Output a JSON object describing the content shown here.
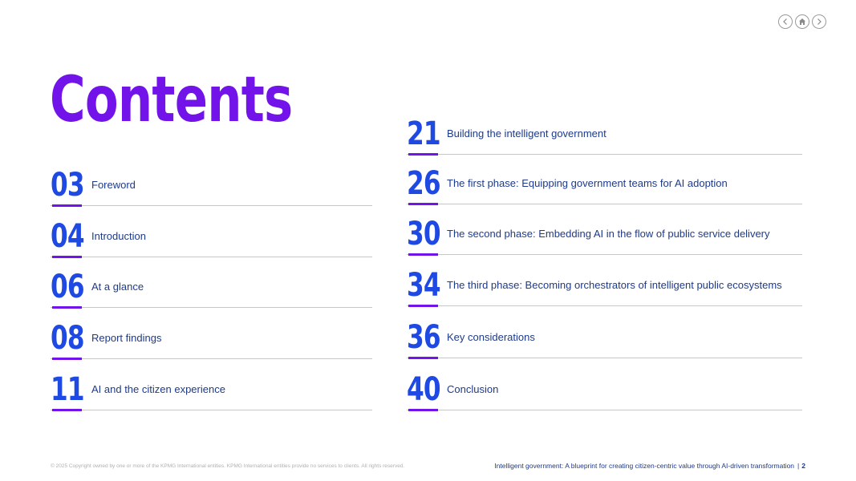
{
  "nav": {
    "icons": [
      "chevron-left-icon",
      "home-icon",
      "chevron-right-icon"
    ]
  },
  "page_title": "Contents",
  "toc_left": [
    {
      "num": "03",
      "label": "Foreword"
    },
    {
      "num": "04",
      "label": "Introduction"
    },
    {
      "num": "06",
      "label": "At a glance"
    },
    {
      "num": "08",
      "label": "Report findings"
    },
    {
      "num": "11",
      "label": "AI and the citizen experience"
    }
  ],
  "toc_right": [
    {
      "num": "21",
      "label": "Building the intelligent government"
    },
    {
      "num": "26",
      "label": "The first phase: Equipping government teams for AI adoption"
    },
    {
      "num": "30",
      "label": "The second phase: Embedding AI in the flow of public service delivery"
    },
    {
      "num": "34",
      "label": "The third phase: Becoming orchestrators of intelligent public ecosystems"
    },
    {
      "num": "36",
      "label": "Key considerations"
    },
    {
      "num": "40",
      "label": "Conclusion"
    }
  ],
  "footer": {
    "copyright": "© 2025 Copyright owned by one or more of the KPMG International entities. KPMG International entities provide no services to clients. All rights reserved.",
    "report_title": "Intelligent government: A blueprint for creating citizen-centric value through AI-driven transformation",
    "separator": "|",
    "page_number": "2"
  },
  "colors": {
    "title": "#7213ea",
    "number": "#1e49e2",
    "label": "#1e3a8a",
    "accent": "#7213ea",
    "rule": "#c8c8c8"
  }
}
